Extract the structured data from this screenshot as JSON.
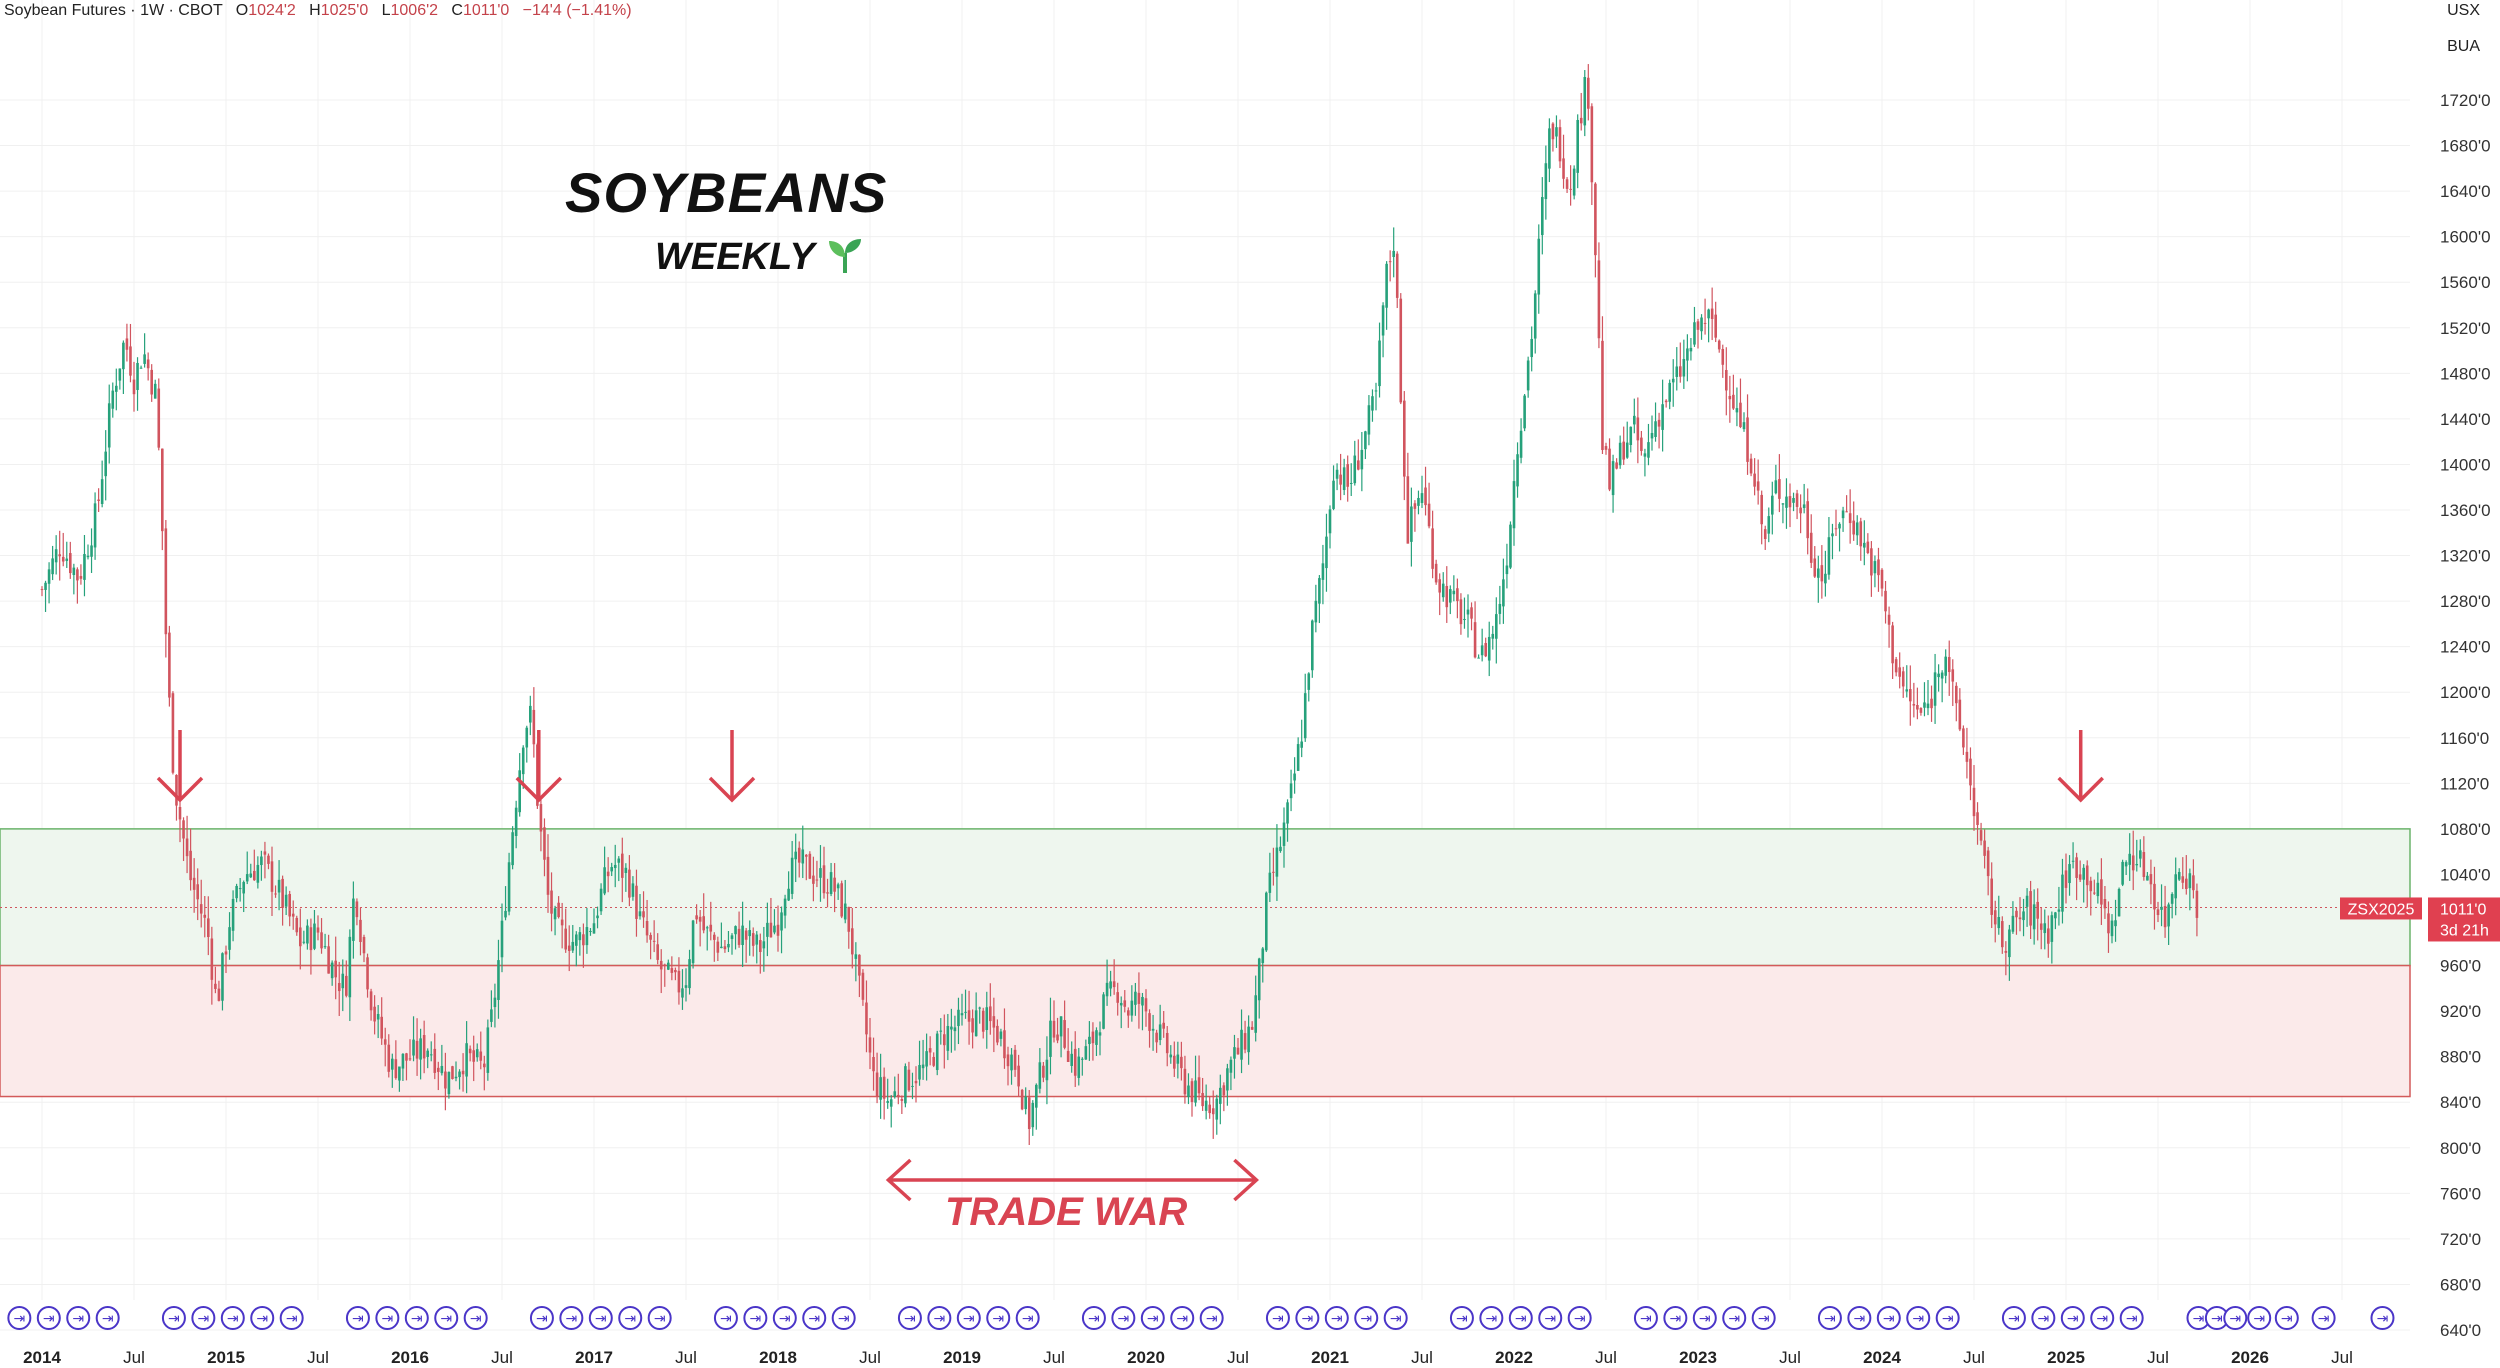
{
  "header": {
    "instrument": "Soybean Futures · 1W · CBOT",
    "open_label": "O",
    "open": "1024'2",
    "high_label": "H",
    "high": "1025'0",
    "low_label": "L",
    "low": "1006'2",
    "close_label": "C",
    "close": "1011'0",
    "change": "−14'4 (−1.41%)"
  },
  "axis_units": {
    "currency": "USX",
    "unit": "BUA"
  },
  "annotations": {
    "title": "SOYBEANS",
    "subtitle": "WEEKLY",
    "subtitle_icon": "sprout-icon",
    "trade_war_label": "TRADE WAR"
  },
  "price_tag": {
    "symbol": "ZSX2025",
    "price": "1011'0",
    "countdown": "3d 21h",
    "color": "#e04050"
  },
  "colors": {
    "up": "#26a17b",
    "down": "#d1545e",
    "support_zone_fill": "#eef6ee",
    "support_zone_border": "#6bb36b",
    "lower_zone_fill": "#fbeaea",
    "lower_zone_border": "#d35a5a",
    "arrow": "#d94452",
    "marker": "#4a35c8"
  },
  "chart_data": {
    "type": "candlestick",
    "title": "",
    "xlabel": "",
    "ylabel": "",
    "x_ticks": [
      "2014",
      "Jul",
      "2015",
      "Jul",
      "2016",
      "Jul",
      "2017",
      "Jul",
      "2018",
      "Jul",
      "2019",
      "Jul",
      "2020",
      "Jul",
      "2021",
      "Jul",
      "2022",
      "Jul",
      "2023",
      "Jul",
      "2024",
      "Jul",
      "2025",
      "Jul",
      "2026",
      "Jul"
    ],
    "x_range": [
      2014.0,
      2027.0
    ],
    "y_ticks": [
      "640'0",
      "680'0",
      "720'0",
      "760'0",
      "800'0",
      "840'0",
      "880'0",
      "920'0",
      "960'0",
      "1000'0",
      "1040'0",
      "1080'0",
      "1120'0",
      "1160'0",
      "1200'0",
      "1240'0",
      "1280'0",
      "1320'0",
      "1360'0",
      "1400'0",
      "1440'0",
      "1480'0",
      "1520'0",
      "1560'0",
      "1600'0",
      "1640'0",
      "1680'0",
      "1720'0"
    ],
    "ylim": [
      640,
      1770
    ],
    "current_price": 1011,
    "zones": [
      {
        "name": "upper",
        "from": 960,
        "to": 1080
      },
      {
        "name": "lower",
        "from": 845,
        "to": 960
      }
    ],
    "down_arrows_at": [
      2014.75,
      2016.7,
      2017.75,
      2025.08
    ],
    "trade_war_range": [
      2018.6,
      2020.6
    ],
    "price_path": [
      [
        2014.0,
        1290
      ],
      [
        2014.1,
        1330
      ],
      [
        2014.2,
        1300
      ],
      [
        2014.3,
        1360
      ],
      [
        2014.38,
        1460
      ],
      [
        2014.45,
        1510
      ],
      [
        2014.5,
        1475
      ],
      [
        2014.55,
        1500
      ],
      [
        2014.62,
        1460
      ],
      [
        2014.65,
        1360
      ],
      [
        2014.68,
        1220
      ],
      [
        2014.72,
        1120
      ],
      [
        2014.8,
        1040
      ],
      [
        2014.9,
        990
      ],
      [
        2014.95,
        925
      ],
      [
        2015.02,
        1000
      ],
      [
        2015.1,
        1040
      ],
      [
        2015.2,
        1050
      ],
      [
        2015.3,
        1020
      ],
      [
        2015.4,
        980
      ],
      [
        2015.5,
        990
      ],
      [
        2015.6,
        950
      ],
      [
        2015.65,
        940
      ],
      [
        2015.7,
        1030
      ],
      [
        2015.75,
        970
      ],
      [
        2015.8,
        920
      ],
      [
        2015.9,
        870
      ],
      [
        2016.0,
        880
      ],
      [
        2016.1,
        890
      ],
      [
        2016.2,
        860
      ],
      [
        2016.3,
        880
      ],
      [
        2016.4,
        870
      ],
      [
        2016.45,
        920
      ],
      [
        2016.5,
        990
      ],
      [
        2016.55,
        1070
      ],
      [
        2016.62,
        1170
      ],
      [
        2016.66,
        1180
      ],
      [
        2016.7,
        1090
      ],
      [
        2016.75,
        1020
      ],
      [
        2016.8,
        990
      ],
      [
        2016.9,
        980
      ],
      [
        2017.0,
        1000
      ],
      [
        2017.05,
        1030
      ],
      [
        2017.1,
        1050
      ],
      [
        2017.18,
        1040
      ],
      [
        2017.25,
        1000
      ],
      [
        2017.35,
        960
      ],
      [
        2017.45,
        940
      ],
      [
        2017.5,
        950
      ],
      [
        2017.55,
        1010
      ],
      [
        2017.6,
        990
      ],
      [
        2017.7,
        975
      ],
      [
        2017.8,
        990
      ],
      [
        2017.85,
        980
      ],
      [
        2017.9,
        975
      ],
      [
        2017.95,
        990
      ],
      [
        2018.0,
        1000
      ],
      [
        2018.05,
        1040
      ],
      [
        2018.12,
        1050
      ],
      [
        2018.2,
        1040
      ],
      [
        2018.3,
        1030
      ],
      [
        2018.38,
        1000
      ],
      [
        2018.45,
        930
      ],
      [
        2018.52,
        860
      ],
      [
        2018.6,
        840
      ],
      [
        2018.7,
        860
      ],
      [
        2018.8,
        870
      ],
      [
        2018.9,
        900
      ],
      [
        2019.0,
        910
      ],
      [
        2019.1,
        915
      ],
      [
        2019.2,
        900
      ],
      [
        2019.3,
        870
      ],
      [
        2019.36,
        820
      ],
      [
        2019.42,
        860
      ],
      [
        2019.5,
        910
      ],
      [
        2019.55,
        900
      ],
      [
        2019.62,
        870
      ],
      [
        2019.7,
        890
      ],
      [
        2019.78,
        930
      ],
      [
        2019.85,
        940
      ],
      [
        2019.9,
        920
      ],
      [
        2019.95,
        930
      ],
      [
        2020.0,
        920
      ],
      [
        2020.1,
        890
      ],
      [
        2020.2,
        860
      ],
      [
        2020.3,
        840
      ],
      [
        2020.38,
        840
      ],
      [
        2020.45,
        870
      ],
      [
        2020.52,
        890
      ],
      [
        2020.58,
        910
      ],
      [
        2020.62,
        960
      ],
      [
        2020.66,
        1020
      ],
      [
        2020.72,
        1060
      ],
      [
        2020.78,
        1100
      ],
      [
        2020.85,
        1170
      ],
      [
        2020.9,
        1250
      ],
      [
        2020.97,
        1320
      ],
      [
        2021.02,
        1400
      ],
      [
        2021.1,
        1380
      ],
      [
        2021.18,
        1420
      ],
      [
        2021.25,
        1460
      ],
      [
        2021.3,
        1560
      ],
      [
        2021.35,
        1600
      ],
      [
        2021.38,
        1480
      ],
      [
        2021.42,
        1340
      ],
      [
        2021.5,
        1380
      ],
      [
        2021.58,
        1300
      ],
      [
        2021.66,
        1280
      ],
      [
        2021.75,
        1260
      ],
      [
        2021.82,
        1230
      ],
      [
        2021.9,
        1260
      ],
      [
        2021.96,
        1320
      ],
      [
        2022.02,
        1420
      ],
      [
        2022.1,
        1520
      ],
      [
        2022.15,
        1620
      ],
      [
        2022.2,
        1700
      ],
      [
        2022.25,
        1680
      ],
      [
        2022.3,
        1640
      ],
      [
        2022.35,
        1700
      ],
      [
        2022.4,
        1740
      ],
      [
        2022.45,
        1560
      ],
      [
        2022.48,
        1420
      ],
      [
        2022.52,
        1380
      ],
      [
        2022.6,
        1420
      ],
      [
        2022.66,
        1430
      ],
      [
        2022.7,
        1400
      ],
      [
        2022.75,
        1430
      ],
      [
        2022.8,
        1450
      ],
      [
        2022.9,
        1480
      ],
      [
        2022.95,
        1500
      ],
      [
        2023.0,
        1520
      ],
      [
        2023.05,
        1530
      ],
      [
        2023.1,
        1510
      ],
      [
        2023.15,
        1480
      ],
      [
        2023.22,
        1440
      ],
      [
        2023.3,
        1400
      ],
      [
        2023.36,
        1330
      ],
      [
        2023.42,
        1380
      ],
      [
        2023.5,
        1370
      ],
      [
        2023.58,
        1360
      ],
      [
        2023.62,
        1320
      ],
      [
        2023.68,
        1300
      ],
      [
        2023.75,
        1350
      ],
      [
        2023.82,
        1360
      ],
      [
        2023.9,
        1330
      ],
      [
        2023.95,
        1310
      ],
      [
        2024.0,
        1290
      ],
      [
        2024.05,
        1240
      ],
      [
        2024.12,
        1200
      ],
      [
        2024.2,
        1180
      ],
      [
        2024.26,
        1190
      ],
      [
        2024.3,
        1220
      ],
      [
        2024.35,
        1240
      ],
      [
        2024.4,
        1180
      ],
      [
        2024.45,
        1150
      ],
      [
        2024.5,
        1100
      ],
      [
        2024.55,
        1050
      ],
      [
        2024.6,
        1010
      ],
      [
        2024.65,
        980
      ],
      [
        2024.7,
        990
      ],
      [
        2024.78,
        1010
      ],
      [
        2024.85,
        1000
      ],
      [
        2024.9,
        990
      ],
      [
        2024.95,
        1010
      ],
      [
        2025.0,
        1040
      ],
      [
        2025.05,
        1050
      ],
      [
        2025.12,
        1040
      ],
      [
        2025.2,
        1010
      ],
      [
        2025.25,
        990
      ],
      [
        2025.3,
        1040
      ],
      [
        2025.35,
        1060
      ],
      [
        2025.4,
        1050
      ],
      [
        2025.45,
        1040
      ],
      [
        2025.5,
        1010
      ],
      [
        2025.55,
        1000
      ],
      [
        2025.6,
        1050
      ],
      [
        2025.66,
        1040
      ],
      [
        2025.72,
        1011
      ]
    ]
  },
  "event_markers": {
    "icon": "event-marker-icon",
    "glyph": "⇥"
  }
}
